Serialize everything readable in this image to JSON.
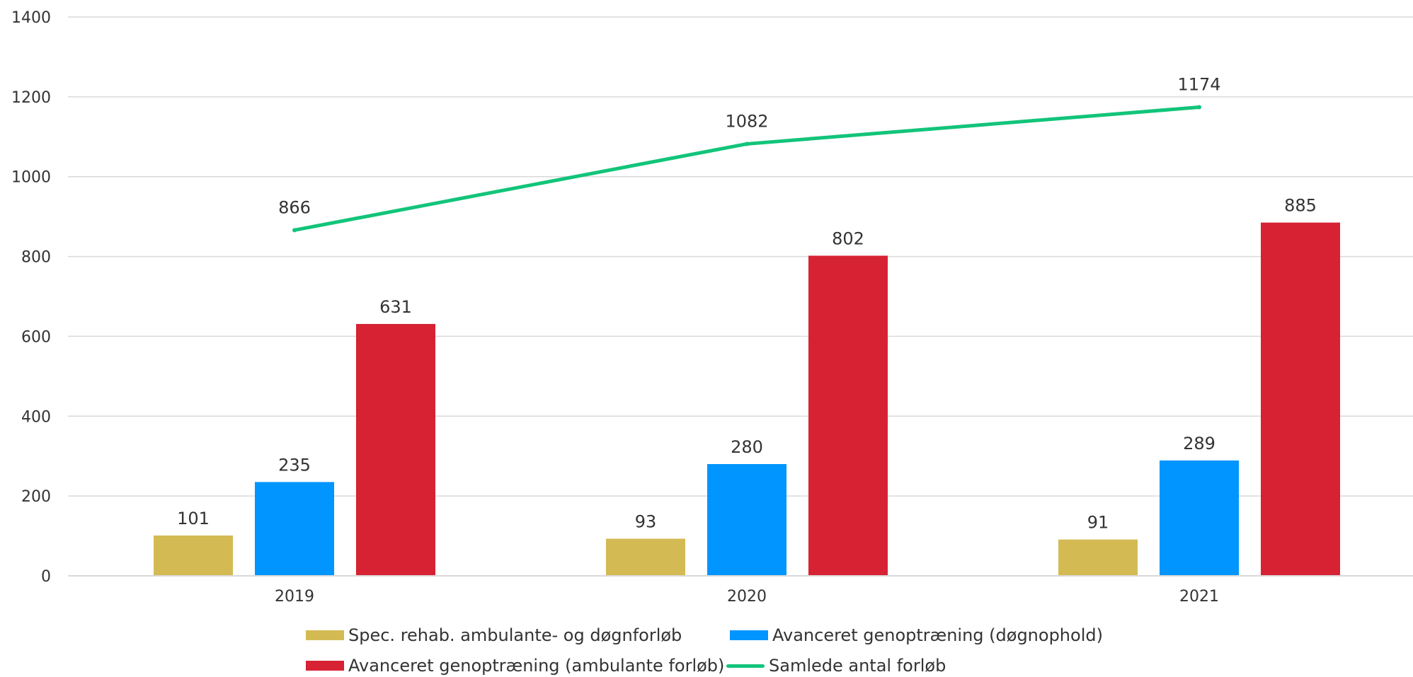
{
  "chart_data": {
    "type": "bar",
    "categories": [
      "2019",
      "2020",
      "2021"
    ],
    "ylim": [
      0,
      1400
    ],
    "yticks": [
      0,
      200,
      400,
      600,
      800,
      1000,
      1200,
      1400
    ],
    "grid": true,
    "legend_position": "bottom",
    "series": [
      {
        "name": "Spec. rehab. ambulante- og døgnforløb",
        "kind": "bar",
        "color": "#D4BA53",
        "values": [
          101,
          93,
          91
        ],
        "labels": [
          "101",
          "93",
          "91"
        ]
      },
      {
        "name": "Avanceret genoptræning (døgnophold)",
        "kind": "bar",
        "color": "#0095FF",
        "values": [
          235,
          280,
          289
        ],
        "labels": [
          "235",
          "280",
          "289"
        ]
      },
      {
        "name": "Avanceret genoptræning (ambulante forløb)",
        "kind": "bar",
        "color": "#D62233",
        "values": [
          631,
          802,
          885
        ],
        "labels": [
          "631",
          "802",
          "885"
        ]
      },
      {
        "name": "Samlede antal forløb",
        "kind": "line",
        "color": "#12C47A",
        "values": [
          866,
          1082,
          1174
        ],
        "labels": [
          "866",
          "1082",
          "1174"
        ]
      }
    ]
  },
  "legend": {
    "items": [
      {
        "label": "Spec. rehab. ambulante- og døgnforløb",
        "kind": "bar",
        "color": "#D4BA53"
      },
      {
        "label": "Avanceret genoptræning (døgnophold)",
        "kind": "bar",
        "color": "#0095FF"
      },
      {
        "label": "Avanceret genoptræning (ambulante forløb)",
        "kind": "bar",
        "color": "#D62233"
      },
      {
        "label": "Samlede antal forløb",
        "kind": "line",
        "color": "#12C47A"
      }
    ]
  }
}
